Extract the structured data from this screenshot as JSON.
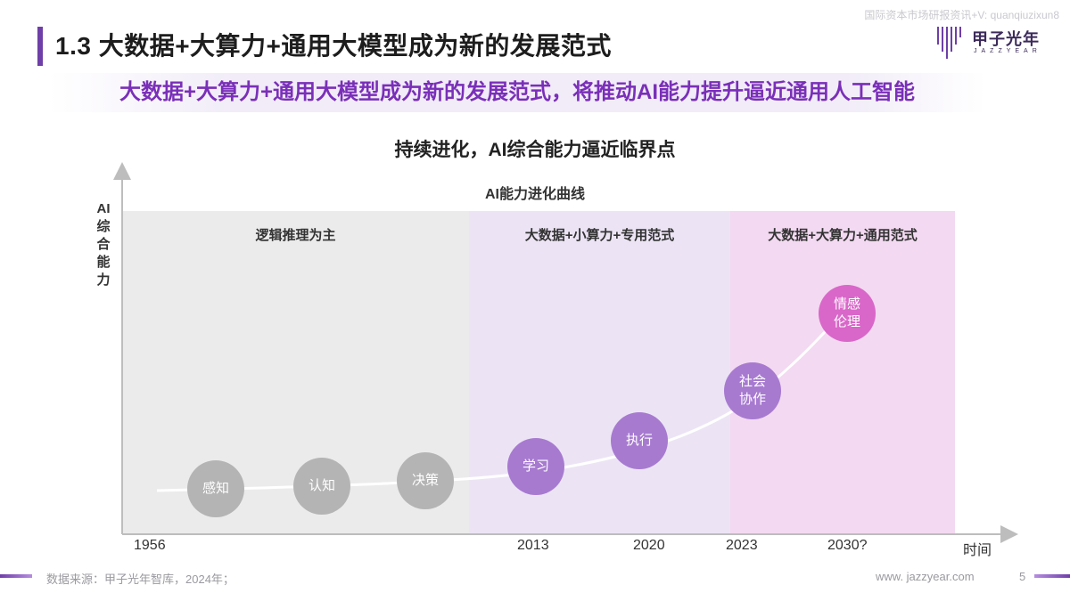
{
  "watermark": "国际资本市场研报资讯+V: quanqiuzixun8",
  "header": {
    "title": "1.3 大数据+大算力+通用大模型成为新的发展范式",
    "logo_text": "甲子光年",
    "logo_sub": "JAZZYEAR"
  },
  "subtitle": "大数据+大算力+通用大模型成为新的发展范式，将推动AI能力提升逼近通用人工智能",
  "chart": {
    "heading": "持续进化，AI综合能力逼近临界点",
    "curve_title": "AI能力进化曲线",
    "ylabel": "AI综合能力",
    "xlabel": "时间",
    "zones": [
      {
        "label": "逻辑推理为主",
        "color": "#ebebeb"
      },
      {
        "label": "大数据+小算力+专用范式",
        "color": "#ece4f5"
      },
      {
        "label": "大数据+大算力+通用范式",
        "color": "#f3d9f1"
      }
    ],
    "ticks": [
      "1956",
      "2013",
      "2020",
      "2023",
      "2030?"
    ],
    "nodes": [
      {
        "label": "感知",
        "style": "gray"
      },
      {
        "label": "认知",
        "style": "gray"
      },
      {
        "label": "决策",
        "style": "gray"
      },
      {
        "label": "学习",
        "style": "purple"
      },
      {
        "label": "执行",
        "style": "purple"
      },
      {
        "label": "社会\n协作",
        "style": "purple"
      },
      {
        "label": "情感\n伦理",
        "style": "pink"
      }
    ]
  },
  "footer": {
    "source": "数据来源：甲子光年智库，2024年；",
    "website": "www. jazzyear.com",
    "page": "5"
  }
}
